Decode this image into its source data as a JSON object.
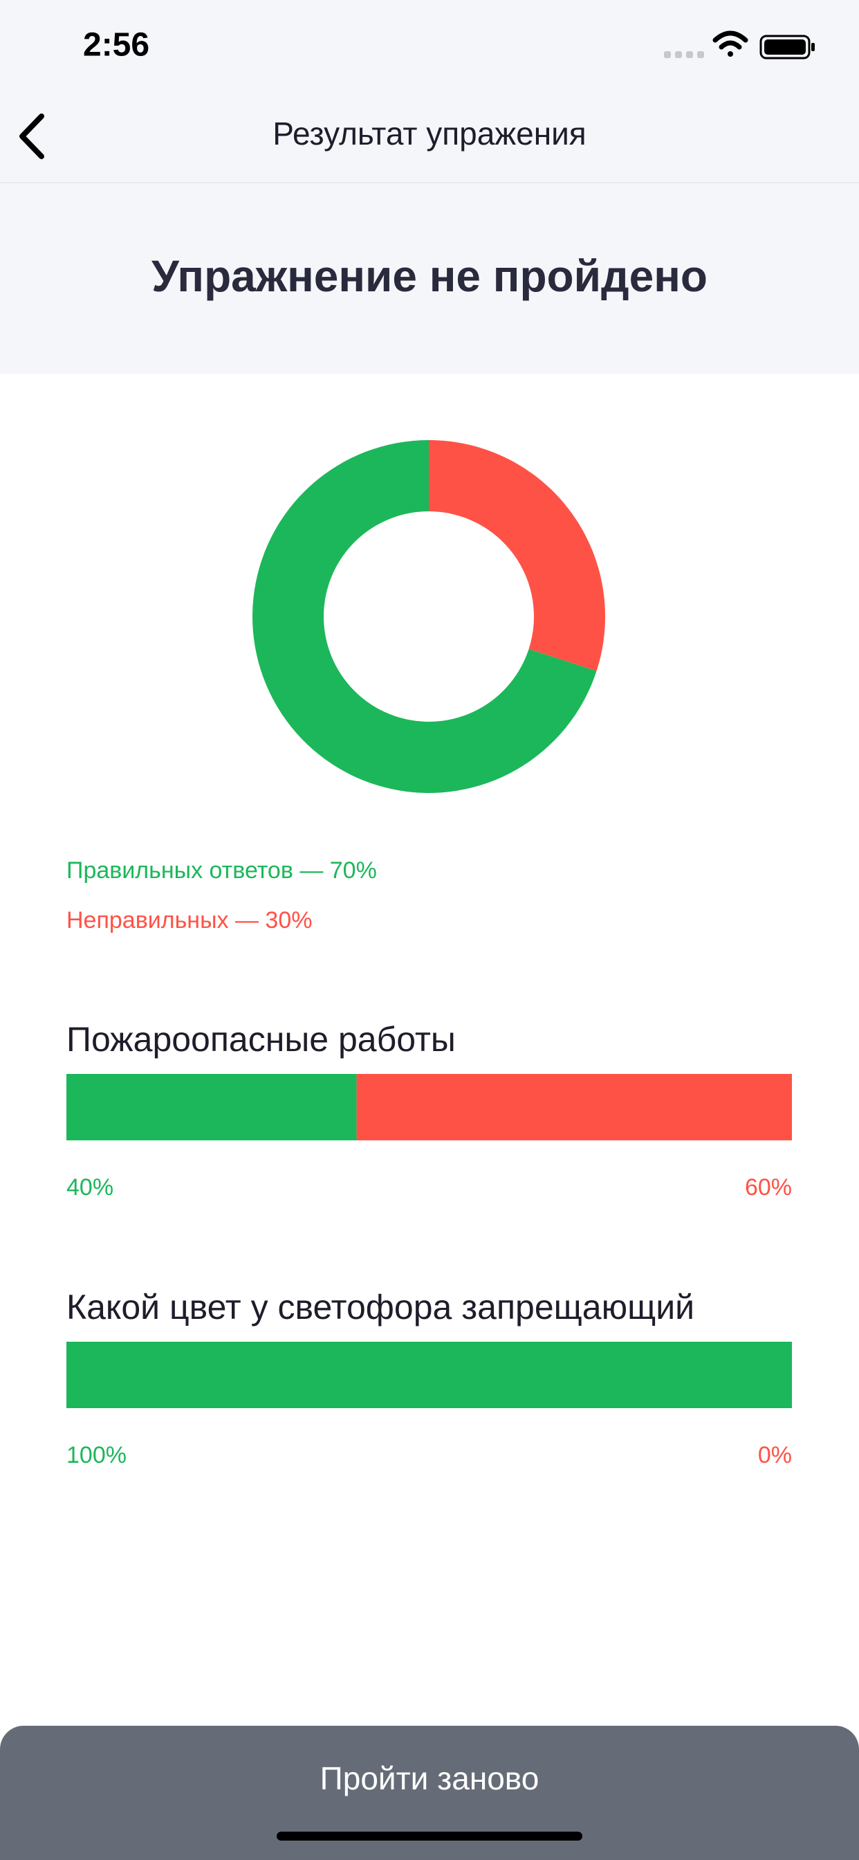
{
  "status_bar": {
    "time": "2:56"
  },
  "header": {
    "title": "Результат упражения"
  },
  "result": {
    "title": "Упражнение не пройдено"
  },
  "chart_data": {
    "type": "pie",
    "donut": true,
    "categories": [
      "Правильных ответов — 70%",
      "Неправильных —  30%"
    ],
    "values": [
      70,
      30
    ],
    "colors": [
      "#1cb75a",
      "#ff5246"
    ]
  },
  "questions": [
    {
      "title": "Пожароопасные работы",
      "values": [
        40,
        60
      ],
      "value_labels": [
        "40%",
        "60%"
      ]
    },
    {
      "title": "Какой цвет у светофора запрещающий",
      "values": [
        100,
        0
      ],
      "value_labels": [
        "100%",
        "0%"
      ]
    }
  ],
  "button": {
    "label": "Пройти заново"
  }
}
